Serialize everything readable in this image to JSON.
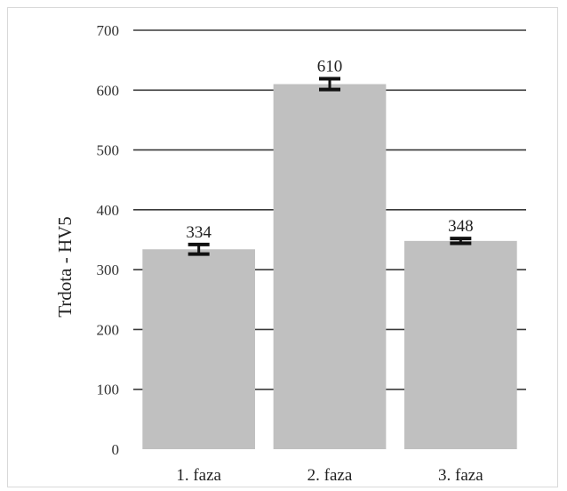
{
  "chart_data": {
    "type": "bar",
    "categories": [
      "1. faza",
      "2. faza",
      "3. faza"
    ],
    "values": [
      334,
      610,
      348
    ],
    "errors": [
      8,
      9,
      4
    ],
    "data_labels": [
      "334",
      "610",
      "348"
    ],
    "ylabel": "Trdota - HV5",
    "xlabel": "",
    "title": "",
    "ylim": [
      0,
      700
    ],
    "yticks": [
      0,
      100,
      200,
      300,
      400,
      500,
      600,
      700
    ],
    "grid": true,
    "colors": {
      "bar": "#c0c0c0",
      "grid": "#3a3a3a",
      "error": "#111111"
    }
  }
}
